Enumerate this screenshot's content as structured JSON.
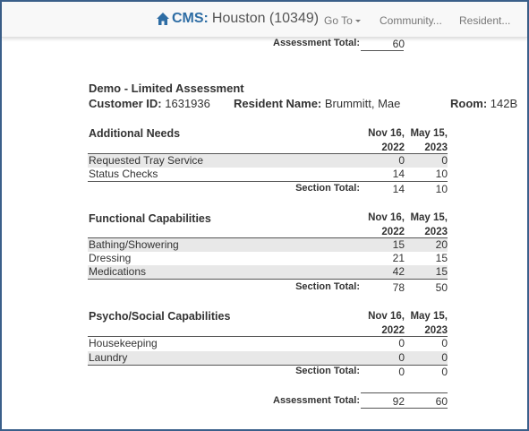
{
  "header": {
    "brand_cms": "CMS:",
    "brand_location": "Houston (10349)",
    "nav": [
      {
        "label": "Go To",
        "dropdown": true
      },
      {
        "label": "Community...",
        "dropdown": false
      },
      {
        "label": "Resident...",
        "dropdown": false
      }
    ]
  },
  "top_total": {
    "label": "Assessment Total:",
    "value": "60"
  },
  "assessment": {
    "title": "Demo - Limited Assessment",
    "customer_id_label": "Customer ID:",
    "customer_id": "1631936",
    "resident_label": "Resident Name:",
    "resident_name": "Brummitt, Mae",
    "room_label": "Room:",
    "room": "142B"
  },
  "columns": [
    {
      "line1": "Nov 16,",
      "line2": "2022"
    },
    {
      "line1": "May 15,",
      "line2": "2023"
    }
  ],
  "sections": [
    {
      "title": "Additional Needs",
      "rows": [
        {
          "name": "Requested Tray Service",
          "v1": "0",
          "v2": "0"
        },
        {
          "name": "Status Checks",
          "v1": "14",
          "v2": "10"
        }
      ],
      "total_label": "Section Total:",
      "total": {
        "v1": "14",
        "v2": "10"
      }
    },
    {
      "title": "Functional Capabilities",
      "rows": [
        {
          "name": "Bathing/Showering",
          "v1": "15",
          "v2": "20"
        },
        {
          "name": "Dressing",
          "v1": "21",
          "v2": "15"
        },
        {
          "name": "Medications",
          "v1": "42",
          "v2": "15"
        }
      ],
      "total_label": "Section Total:",
      "total": {
        "v1": "78",
        "v2": "50"
      }
    },
    {
      "title": "Psycho/Social Capabilities",
      "rows": [
        {
          "name": "Housekeeping",
          "v1": "0",
          "v2": "0"
        },
        {
          "name": "Laundry",
          "v1": "0",
          "v2": "0"
        }
      ],
      "total_label": "Section Total:",
      "total": {
        "v1": "0",
        "v2": "0"
      }
    }
  ],
  "bottom_total": {
    "label": "Assessment Total:",
    "v1": "92",
    "v2": "60"
  },
  "colors": {
    "brand": "#2e6da4",
    "frame": "#3a5f8a",
    "shade": "#e8e8e8"
  },
  "icons": {
    "brand": "home-icon",
    "dropdown": "caret-down-icon"
  }
}
